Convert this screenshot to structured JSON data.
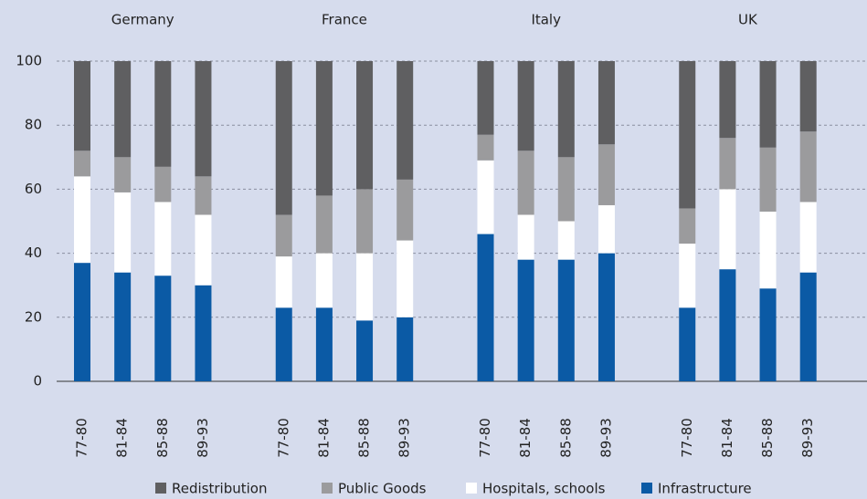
{
  "chart_data": {
    "type": "bar",
    "stacked": true,
    "groups": [
      "Germany",
      "France",
      "Italy",
      "UK"
    ],
    "categories": [
      "77-80",
      "81-84",
      "85-88",
      "89-93",
      "77-80",
      "81-84",
      "85-88",
      "89-93",
      "77-80",
      "81-84",
      "85-88",
      "89-93",
      "77-80",
      "81-84",
      "85-88",
      "89-93"
    ],
    "series": [
      {
        "name": "Infrastructure",
        "color": "#0b5aa5",
        "values": [
          37,
          34,
          33,
          30,
          23,
          23,
          19,
          20,
          46,
          38,
          38,
          40,
          23,
          35,
          29,
          34
        ]
      },
      {
        "name": "Hospitals, schools",
        "color": "#ffffff",
        "values": [
          27,
          25,
          23,
          22,
          16,
          17,
          21,
          24,
          23,
          14,
          12,
          15,
          20,
          25,
          24,
          22
        ]
      },
      {
        "name": "Public Goods",
        "color": "#9b9b9d",
        "values": [
          8,
          11,
          11,
          12,
          13,
          18,
          20,
          19,
          8,
          20,
          20,
          19,
          11,
          16,
          20,
          22
        ]
      },
      {
        "name": "Redistribution",
        "color": "#5f5f61",
        "values": [
          28,
          30,
          33,
          36,
          48,
          42,
          40,
          37,
          23,
          28,
          30,
          26,
          46,
          24,
          27,
          22
        ]
      }
    ],
    "ylim": [
      0,
      100
    ],
    "yticks": [
      0,
      20,
      40,
      60,
      80,
      100
    ],
    "grid": true
  }
}
